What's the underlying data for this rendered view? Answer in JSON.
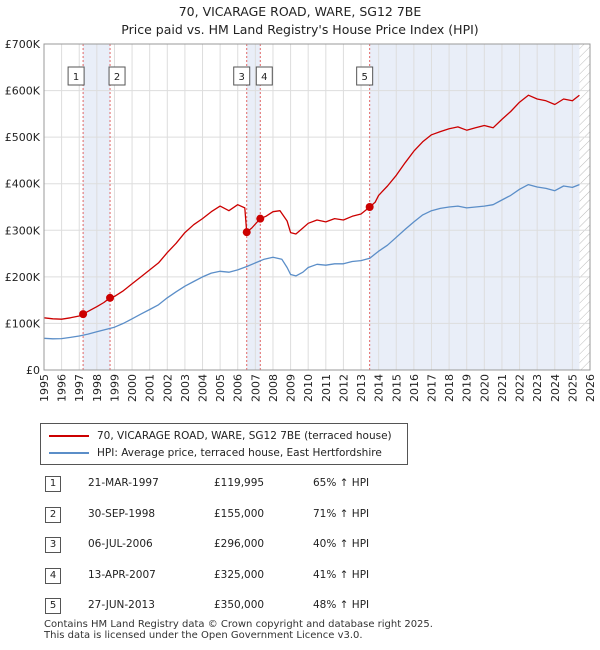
{
  "title_line1": "70, VICARAGE ROAD, WARE, SG12 7BE",
  "title_line2": "Price paid vs. HM Land Registry's House Price Index (HPI)",
  "colors": {
    "property": "#cc0000",
    "hpi": "#5b8ec8",
    "shade": "#e9eef8",
    "marker_line": "#e06666",
    "grid": "#dddddd"
  },
  "chart_data": {
    "type": "line",
    "title": "Price paid vs. HM Land Registry's House Price Index (HPI)",
    "xlabel": "",
    "ylabel": "",
    "xlim": [
      1995,
      2026
    ],
    "ylim": [
      0,
      700000
    ],
    "x_ticks": [
      1995,
      1996,
      1997,
      1998,
      1999,
      2000,
      2001,
      2002,
      2003,
      2004,
      2005,
      2006,
      2007,
      2008,
      2009,
      2010,
      2011,
      2012,
      2013,
      2014,
      2015,
      2016,
      2017,
      2018,
      2019,
      2020,
      2021,
      2022,
      2023,
      2024,
      2025,
      2026
    ],
    "y_ticks": [
      0,
      100000,
      200000,
      300000,
      400000,
      500000,
      600000,
      700000
    ],
    "y_tick_labels": [
      "£0",
      "£100K",
      "£200K",
      "£300K",
      "£400K",
      "£500K",
      "£600K",
      "£700K"
    ],
    "series": [
      {
        "name": "70, VICARAGE ROAD, WARE, SG12 7BE (terraced house)",
        "color": "#cc0000",
        "points": [
          [
            1995.0,
            112000
          ],
          [
            1995.5,
            110000
          ],
          [
            1996.0,
            109000
          ],
          [
            1996.5,
            112000
          ],
          [
            1997.0,
            116000
          ],
          [
            1997.22,
            120000
          ],
          [
            1997.6,
            128000
          ],
          [
            1998.0,
            136000
          ],
          [
            1998.4,
            145000
          ],
          [
            1998.75,
            155000
          ],
          [
            1999.0,
            158000
          ],
          [
            1999.5,
            170000
          ],
          [
            2000.0,
            185000
          ],
          [
            2000.5,
            200000
          ],
          [
            2001.0,
            215000
          ],
          [
            2001.5,
            230000
          ],
          [
            2002.0,
            252000
          ],
          [
            2002.5,
            272000
          ],
          [
            2003.0,
            295000
          ],
          [
            2003.5,
            312000
          ],
          [
            2004.0,
            325000
          ],
          [
            2004.5,
            340000
          ],
          [
            2005.0,
            352000
          ],
          [
            2005.5,
            342000
          ],
          [
            2006.0,
            355000
          ],
          [
            2006.4,
            348000
          ],
          [
            2006.51,
            296000
          ],
          [
            2006.8,
            305000
          ],
          [
            2007.28,
            325000
          ],
          [
            2007.6,
            330000
          ],
          [
            2008.0,
            340000
          ],
          [
            2008.4,
            342000
          ],
          [
            2008.8,
            320000
          ],
          [
            2009.0,
            295000
          ],
          [
            2009.3,
            292000
          ],
          [
            2009.7,
            305000
          ],
          [
            2010.0,
            315000
          ],
          [
            2010.5,
            322000
          ],
          [
            2011.0,
            318000
          ],
          [
            2011.5,
            325000
          ],
          [
            2012.0,
            322000
          ],
          [
            2012.5,
            330000
          ],
          [
            2013.0,
            335000
          ],
          [
            2013.49,
            350000
          ],
          [
            2013.8,
            360000
          ],
          [
            2014.0,
            375000
          ],
          [
            2014.5,
            395000
          ],
          [
            2015.0,
            418000
          ],
          [
            2015.5,
            445000
          ],
          [
            2016.0,
            470000
          ],
          [
            2016.5,
            490000
          ],
          [
            2017.0,
            505000
          ],
          [
            2017.5,
            512000
          ],
          [
            2018.0,
            518000
          ],
          [
            2018.5,
            522000
          ],
          [
            2019.0,
            515000
          ],
          [
            2019.5,
            520000
          ],
          [
            2020.0,
            525000
          ],
          [
            2020.5,
            520000
          ],
          [
            2021.0,
            538000
          ],
          [
            2021.5,
            555000
          ],
          [
            2022.0,
            575000
          ],
          [
            2022.5,
            590000
          ],
          [
            2023.0,
            582000
          ],
          [
            2023.5,
            578000
          ],
          [
            2024.0,
            570000
          ],
          [
            2024.5,
            582000
          ],
          [
            2025.0,
            578000
          ],
          [
            2025.4,
            590000
          ]
        ]
      },
      {
        "name": "HPI: Average price, terraced house, East Hertfordshire",
        "color": "#5b8ec8",
        "points": [
          [
            1995.0,
            68000
          ],
          [
            1995.5,
            67000
          ],
          [
            1996.0,
            67500
          ],
          [
            1996.5,
            70000
          ],
          [
            1997.0,
            73000
          ],
          [
            1997.5,
            77000
          ],
          [
            1998.0,
            82000
          ],
          [
            1998.5,
            87000
          ],
          [
            1999.0,
            92000
          ],
          [
            1999.5,
            100000
          ],
          [
            2000.0,
            110000
          ],
          [
            2000.5,
            120000
          ],
          [
            2001.0,
            130000
          ],
          [
            2001.5,
            140000
          ],
          [
            2002.0,
            155000
          ],
          [
            2002.5,
            168000
          ],
          [
            2003.0,
            180000
          ],
          [
            2003.5,
            190000
          ],
          [
            2004.0,
            200000
          ],
          [
            2004.5,
            208000
          ],
          [
            2005.0,
            212000
          ],
          [
            2005.5,
            210000
          ],
          [
            2006.0,
            215000
          ],
          [
            2006.5,
            222000
          ],
          [
            2007.0,
            230000
          ],
          [
            2007.5,
            238000
          ],
          [
            2008.0,
            242000
          ],
          [
            2008.5,
            238000
          ],
          [
            2008.8,
            220000
          ],
          [
            2009.0,
            205000
          ],
          [
            2009.3,
            202000
          ],
          [
            2009.7,
            210000
          ],
          [
            2010.0,
            220000
          ],
          [
            2010.5,
            227000
          ],
          [
            2011.0,
            225000
          ],
          [
            2011.5,
            228000
          ],
          [
            2012.0,
            228000
          ],
          [
            2012.5,
            233000
          ],
          [
            2013.0,
            235000
          ],
          [
            2013.5,
            240000
          ],
          [
            2014.0,
            255000
          ],
          [
            2014.5,
            268000
          ],
          [
            2015.0,
            285000
          ],
          [
            2015.5,
            302000
          ],
          [
            2016.0,
            318000
          ],
          [
            2016.5,
            333000
          ],
          [
            2017.0,
            342000
          ],
          [
            2017.5,
            347000
          ],
          [
            2018.0,
            350000
          ],
          [
            2018.5,
            352000
          ],
          [
            2019.0,
            348000
          ],
          [
            2019.5,
            350000
          ],
          [
            2020.0,
            352000
          ],
          [
            2020.5,
            355000
          ],
          [
            2021.0,
            365000
          ],
          [
            2021.5,
            375000
          ],
          [
            2022.0,
            388000
          ],
          [
            2022.5,
            398000
          ],
          [
            2023.0,
            393000
          ],
          [
            2023.5,
            390000
          ],
          [
            2024.0,
            385000
          ],
          [
            2024.5,
            395000
          ],
          [
            2025.0,
            392000
          ],
          [
            2025.4,
            398000
          ]
        ]
      }
    ],
    "sales": [
      {
        "label": "1",
        "x": 1997.22,
        "price": 119995
      },
      {
        "label": "2",
        "x": 1998.75,
        "price": 155000
      },
      {
        "label": "3",
        "x": 2006.51,
        "price": 296000
      },
      {
        "label": "4",
        "x": 2007.28,
        "price": 325000
      },
      {
        "label": "5",
        "x": 2013.49,
        "price": 350000
      }
    ],
    "shaded_ranges": [
      [
        1997.22,
        1998.75
      ],
      [
        2006.51,
        2007.28
      ],
      [
        2013.49,
        2025.4
      ]
    ],
    "hatched_from": 2025.4
  },
  "legend": {
    "property_label": "70, VICARAGE ROAD, WARE, SG12 7BE (terraced house)",
    "hpi_label": "HPI: Average price, terraced house, East Hertfordshire"
  },
  "sales_table": [
    {
      "num": "1",
      "date": "21-MAR-1997",
      "price": "£119,995",
      "hpi": "65% ↑ HPI"
    },
    {
      "num": "2",
      "date": "30-SEP-1998",
      "price": "£155,000",
      "hpi": "71% ↑ HPI"
    },
    {
      "num": "3",
      "date": "06-JUL-2006",
      "price": "£296,000",
      "hpi": "40% ↑ HPI"
    },
    {
      "num": "4",
      "date": "13-APR-2007",
      "price": "£325,000",
      "hpi": "41% ↑ HPI"
    },
    {
      "num": "5",
      "date": "27-JUN-2013",
      "price": "£350,000",
      "hpi": "48% ↑ HPI"
    }
  ],
  "footer": {
    "line1": "Contains HM Land Registry data © Crown copyright and database right 2025.",
    "line2": "This data is licensed under the Open Government Licence v3.0."
  }
}
